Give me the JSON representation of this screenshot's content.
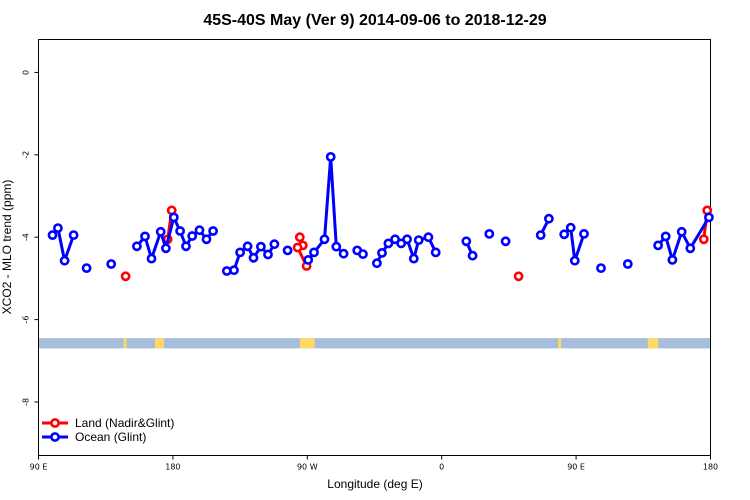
{
  "chart_data": {
    "type": "line",
    "title": "45S-40S May (Ver 9)   2014-09-06 to 2018-12-29",
    "xlabel": "Longitude (deg E)",
    "ylabel": "XCO2 - MLO trend (ppm)",
    "xlim": [
      90,
      540
    ],
    "ylim": [
      -9.3,
      0.8
    ],
    "x_ticks": [
      {
        "value": 90,
        "label": "90 E"
      },
      {
        "value": 180,
        "label": "180"
      },
      {
        "value": 270,
        "label": "90 W"
      },
      {
        "value": 360,
        "label": "0"
      },
      {
        "value": 450,
        "label": "90 E"
      },
      {
        "value": 540,
        "label": "180"
      }
    ],
    "y_ticks": [
      0,
      -2,
      -4,
      -6,
      -8
    ],
    "legend": {
      "placement": "bottom-left",
      "entries": [
        {
          "label": "Land (Nadir&Glint)",
          "color": "#ff0000"
        },
        {
          "label": "Ocean (Glint)",
          "color": "#0000ff"
        }
      ]
    },
    "series": [
      {
        "name": "Land (Nadir&Glint)",
        "color": "#ff0000",
        "segments": [
          [
            [
              148.3,
              -4.95
            ]
          ],
          [
            [
              179.2,
              -3.35
            ],
            [
              176.5,
              -4.05
            ]
          ],
          [
            [
              267.0,
              -4.2
            ],
            [
              265.0,
              -4.0
            ]
          ],
          [
            [
              269.5,
              -4.7
            ],
            [
              263.5,
              -4.25
            ]
          ],
          [
            [
              411.5,
              -4.95
            ]
          ],
          [
            [
              535.5,
              -4.05
            ],
            [
              537.8,
              -3.35
            ]
          ]
        ]
      },
      {
        "name": "Ocean (Glint)",
        "color": "#0000ff",
        "segments": [
          [
            [
              99.4,
              -3.95
            ],
            [
              103.0,
              -3.78
            ],
            [
              107.5,
              -4.57
            ],
            [
              113.5,
              -3.95
            ]
          ],
          [
            [
              122.2,
              -4.75
            ]
          ],
          [
            [
              138.7,
              -4.65
            ]
          ],
          [
            [
              155.9,
              -4.22
            ],
            [
              161.3,
              -3.98
            ],
            [
              165.7,
              -4.52
            ],
            [
              171.8,
              -3.87
            ],
            [
              175.3,
              -4.27
            ],
            [
              180.6,
              -3.52
            ],
            [
              184.8,
              -3.85
            ],
            [
              188.8,
              -4.22
            ],
            [
              192.9,
              -3.97
            ],
            [
              197.8,
              -3.83
            ],
            [
              202.5,
              -4.05
            ],
            [
              206.9,
              -3.85
            ]
          ],
          [
            [
              216.1,
              -4.82
            ],
            [
              220.9,
              -4.8
            ],
            [
              225.0,
              -4.37
            ],
            [
              230.0,
              -4.22
            ],
            [
              234.0,
              -4.5
            ],
            [
              238.9,
              -4.23
            ],
            [
              243.7,
              -4.42
            ],
            [
              248.0,
              -4.17
            ]
          ],
          [
            [
              256.8,
              -4.32
            ]
          ],
          [
            [
              270.6,
              -4.55
            ],
            [
              274.5,
              -4.37
            ],
            [
              281.5,
              -4.05
            ],
            [
              285.7,
              -2.05
            ],
            [
              289.4,
              -4.23
            ],
            [
              294.3,
              -4.4
            ]
          ],
          [
            [
              303.4,
              -4.32
            ],
            [
              307.3,
              -4.41
            ]
          ],
          [
            [
              316.6,
              -4.63
            ],
            [
              320.0,
              -4.38
            ],
            [
              324.3,
              -4.15
            ],
            [
              328.8,
              -4.05
            ],
            [
              332.9,
              -4.15
            ],
            [
              336.8,
              -4.05
            ],
            [
              341.3,
              -4.52
            ],
            [
              344.6,
              -4.07
            ],
            [
              351.1,
              -4.0
            ],
            [
              356.0,
              -4.37
            ]
          ],
          [
            [
              376.5,
              -4.1
            ],
            [
              380.7,
              -4.45
            ]
          ],
          [
            [
              391.9,
              -3.92
            ]
          ],
          [
            [
              402.8,
              -4.1
            ]
          ],
          [
            [
              426.3,
              -3.95
            ],
            [
              431.8,
              -3.55
            ]
          ],
          [
            [
              442.0,
              -3.93
            ],
            [
              446.4,
              -3.77
            ],
            [
              449.1,
              -4.57
            ],
            [
              455.3,
              -3.92
            ]
          ],
          [
            [
              466.7,
              -4.75
            ]
          ],
          [
            [
              484.6,
              -4.65
            ]
          ],
          [
            [
              504.9,
              -4.2
            ],
            [
              510.0,
              -3.98
            ],
            [
              514.5,
              -4.55
            ],
            [
              520.7,
              -3.87
            ],
            [
              526.5,
              -4.27
            ],
            [
              538.9,
              -3.52
            ]
          ]
        ]
      }
    ],
    "band": {
      "y_range": [
        -6.7,
        -6.45
      ],
      "ocean_color": "#a6bddb",
      "land_color": "#ffd966",
      "land_x": [
        [
          147,
          149
        ],
        [
          168,
          174
        ],
        [
          265,
          275
        ],
        [
          438,
          440
        ],
        [
          498,
          505
        ]
      ]
    }
  }
}
